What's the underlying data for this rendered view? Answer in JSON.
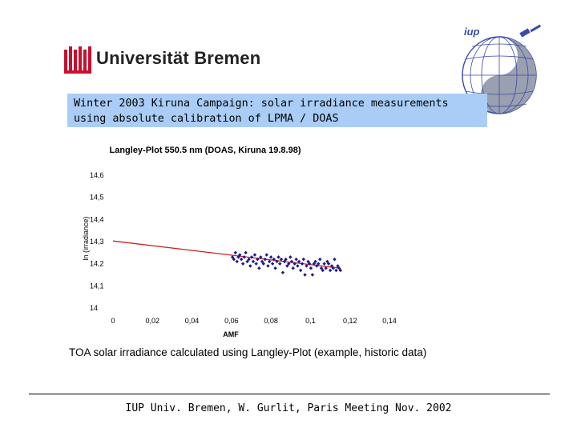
{
  "university_logo": {
    "text": "Universität Bremen",
    "color": "#c8102e"
  },
  "iup_logo": {
    "text": "iup"
  },
  "banner": {
    "line1": "Winter 2003 Kiruna Campaign: solar irradiance measurements",
    "line2": "using absolute calibration of LPMA / DOAS",
    "color": "#a9cdf6"
  },
  "chart_data": {
    "type": "scatter",
    "title": "Langley-Plot  550.5 nm (DOAS, Kiruna 19.8.98)",
    "xlabel": "AMF",
    "ylabel": "ln (irradiance)",
    "xlim": [
      0,
      0.14
    ],
    "ylim": [
      14,
      14.6
    ],
    "x_ticks": [
      0,
      0.02,
      0.04,
      0.06,
      0.08,
      0.1,
      0.12,
      0.14
    ],
    "x_tick_labels": [
      "0",
      "0,02",
      "0,04",
      "0,06",
      "0,08",
      "0,1",
      "0,12",
      "0,14"
    ],
    "y_ticks": [
      14,
      14.1,
      14.2,
      14.3,
      14.4,
      14.5,
      14.6
    ],
    "y_tick_labels": [
      "14",
      "14,1",
      "14,2",
      "14,3",
      "14,4",
      "14,5",
      "14,6"
    ],
    "grid": false,
    "marker_color": "#1a1a8c",
    "fit_color": "#cc2020",
    "fit_line": {
      "x": [
        0,
        0.115
      ],
      "y": [
        14.303,
        14.18
      ]
    },
    "series": [
      {
        "x": [
          0.0605,
          0.0612,
          0.062,
          0.0628,
          0.0635,
          0.0642,
          0.065,
          0.0658,
          0.0665,
          0.0672,
          0.068,
          0.0688,
          0.0695,
          0.0702,
          0.071,
          0.0718,
          0.0725,
          0.0732,
          0.074,
          0.0748,
          0.0755,
          0.0762,
          0.077,
          0.0778,
          0.0785,
          0.0792,
          0.08,
          0.0808,
          0.0815,
          0.0822,
          0.083,
          0.0838,
          0.0845,
          0.0852,
          0.086,
          0.0868,
          0.0875,
          0.0882,
          0.089,
          0.0898,
          0.0905,
          0.0912,
          0.092,
          0.0928,
          0.0935,
          0.0942,
          0.095,
          0.0958,
          0.0965,
          0.0972,
          0.098,
          0.0988,
          0.0995,
          0.1002,
          0.101,
          0.1018,
          0.1025,
          0.1032,
          0.104,
          0.1048,
          0.1055,
          0.1062,
          0.107,
          0.1078,
          0.1085,
          0.1092,
          0.11,
          0.1108,
          0.1115,
          0.1122,
          0.113,
          0.1138,
          0.1145,
          0.1152
        ],
        "y": [
          14.23,
          14.22,
          14.25,
          14.21,
          14.23,
          14.24,
          14.22,
          14.2,
          14.23,
          14.25,
          14.21,
          14.22,
          14.19,
          14.23,
          14.21,
          14.24,
          14.2,
          14.22,
          14.18,
          14.23,
          14.21,
          14.2,
          14.22,
          14.24,
          14.19,
          14.21,
          14.23,
          14.2,
          14.22,
          14.18,
          14.21,
          14.23,
          14.2,
          14.22,
          14.16,
          14.21,
          14.22,
          14.19,
          14.2,
          14.23,
          14.21,
          14.18,
          14.2,
          14.22,
          14.19,
          14.21,
          14.17,
          14.2,
          14.22,
          14.15,
          14.19,
          14.21,
          14.2,
          14.18,
          14.15,
          14.2,
          14.21,
          14.19,
          14.2,
          14.22,
          14.18,
          14.17,
          14.2,
          14.18,
          14.21,
          14.2,
          14.17,
          14.19,
          14.18,
          14.22,
          14.17,
          14.19,
          14.18,
          14.17
        ]
      }
    ]
  },
  "caption": "TOA solar irradiance calculated using Langley-Plot (example, historic data)",
  "footer": "IUP Univ. Bremen, W. Gurlit, Paris Meeting Nov. 2002"
}
